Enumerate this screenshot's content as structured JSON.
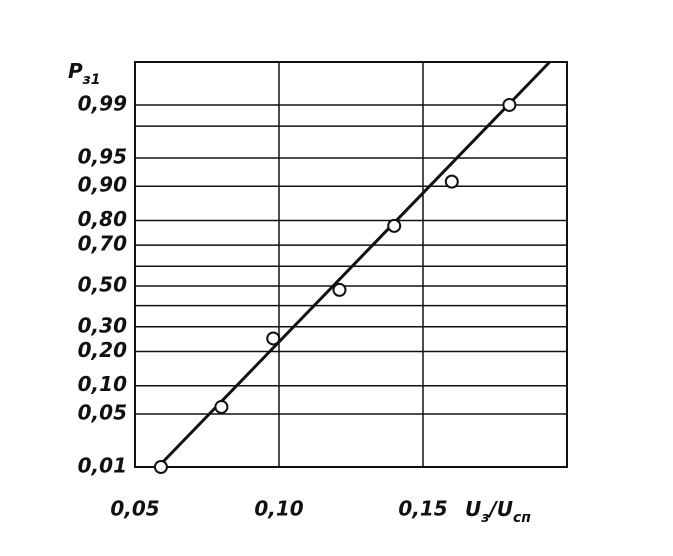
{
  "chart_data": {
    "type": "scatter",
    "ylabel": [
      "P",
      "з1"
    ],
    "xlabel": [
      "U",
      "з",
      "/U",
      "сп"
    ],
    "yscale": "probit",
    "xlim": [
      0.05,
      0.2
    ],
    "ylim": [
      0.01,
      0.998
    ],
    "xticks": [
      {
        "value": 0.05,
        "label": "0,05"
      },
      {
        "value": 0.1,
        "label": "0,10"
      },
      {
        "value": 0.15,
        "label": "0,15"
      }
    ],
    "yticks": [
      {
        "value": 0.01,
        "label": "0,01"
      },
      {
        "value": 0.05,
        "label": "0,05"
      },
      {
        "value": 0.1,
        "label": "0,10"
      },
      {
        "value": 0.2,
        "label": "0,20"
      },
      {
        "value": 0.3,
        "label": "0,30"
      },
      {
        "value": 0.5,
        "label": "0,50"
      },
      {
        "value": 0.7,
        "label": "0,70"
      },
      {
        "value": 0.8,
        "label": "0,80"
      },
      {
        "value": 0.9,
        "label": "0,90"
      },
      {
        "value": 0.95,
        "label": "0,95"
      },
      {
        "value": 0.99,
        "label": "0,99"
      }
    ],
    "y_minor_grid": [
      0.4,
      0.6,
      0.98
    ],
    "grid": true,
    "color": "#111111",
    "points": {
      "x": [
        0.059,
        0.08,
        0.098,
        0.121,
        0.14,
        0.16,
        0.18
      ],
      "y": [
        0.01,
        0.06,
        0.25,
        0.48,
        0.78,
        0.91,
        0.99
      ]
    },
    "fit_line": {
      "x": [
        0.058,
        0.194
      ],
      "y": [
        0.01,
        0.998
      ]
    }
  }
}
